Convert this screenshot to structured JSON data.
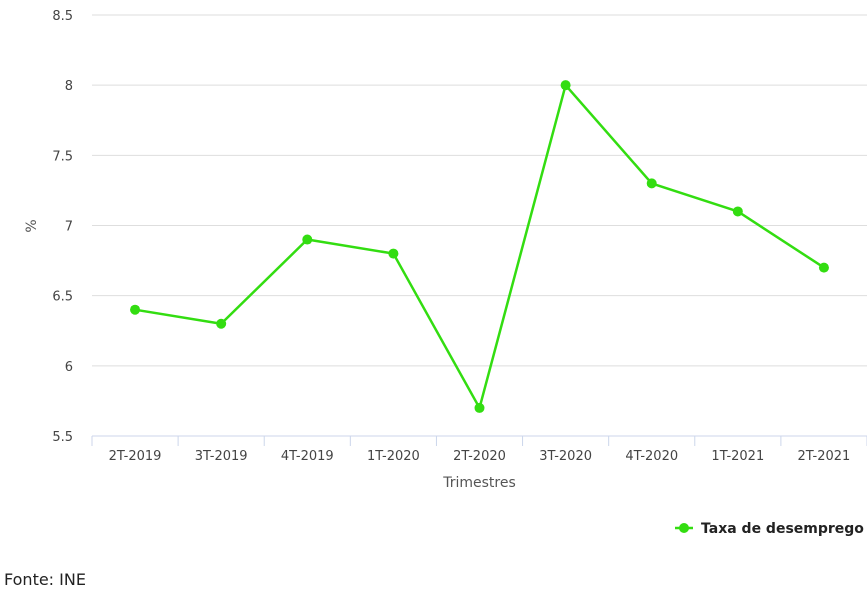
{
  "chart_data": {
    "type": "line",
    "xlabel": "Trimestres",
    "ylabel": "%",
    "categories": [
      "2T-2019",
      "3T-2019",
      "4T-2019",
      "1T-2020",
      "2T-2020",
      "3T-2020",
      "4T-2020",
      "1T-2021",
      "2T-2021"
    ],
    "series": [
      {
        "name": "Taxa de desemprego",
        "values": [
          6.4,
          6.3,
          6.9,
          6.8,
          5.7,
          8.0,
          7.3,
          7.1,
          6.7
        ],
        "color": "#33dd11"
      }
    ],
    "yticks": [
      "5.5",
      "6",
      "6.5",
      "7",
      "7.5",
      "8",
      "8.5"
    ],
    "ylim": [
      5.5,
      8.5
    ],
    "grid": "horizontal",
    "legend": "bottom-right"
  },
  "source": "Fonte: INE"
}
